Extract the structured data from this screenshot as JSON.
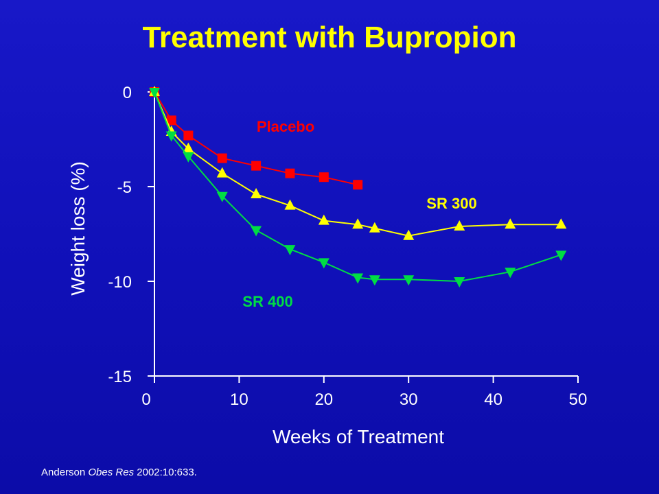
{
  "title": "Treatment with Bupropion",
  "citation": {
    "author": "Anderson ",
    "journal": "Obes Res",
    "ref": " 2002:10:633."
  },
  "chart_data": {
    "type": "line",
    "title": "Treatment with Bupropion",
    "xlabel": "Weeks of Treatment",
    "ylabel": "Weight loss (%)",
    "xlim": [
      0,
      50
    ],
    "ylim": [
      -15,
      0
    ],
    "xticks": [
      0,
      10,
      20,
      30,
      40,
      50
    ],
    "yticks": [
      0,
      -5,
      -10,
      -15
    ],
    "grid": false,
    "legend": "inline labels",
    "series": [
      {
        "name": "Placebo",
        "color": "#ff0000",
        "marker": "square",
        "x": [
          0,
          2,
          4,
          8,
          12,
          16,
          20,
          24
        ],
        "y": [
          0,
          -1.5,
          -2.3,
          -3.5,
          -3.9,
          -4.3,
          -4.5,
          -4.9
        ]
      },
      {
        "name": "SR 300",
        "color": "#ffff00",
        "marker": "triangle-up",
        "x": [
          0,
          2,
          4,
          8,
          12,
          16,
          20,
          24,
          26,
          30,
          36,
          42,
          48
        ],
        "y": [
          0,
          -2.1,
          -3.0,
          -4.3,
          -5.4,
          -6.0,
          -6.8,
          -7.0,
          -7.2,
          -7.6,
          -7.1,
          -7.0,
          -7.0
        ]
      },
      {
        "name": "SR 400",
        "color": "#00dd44",
        "marker": "triangle-down",
        "x": [
          0,
          2,
          4,
          8,
          12,
          16,
          20,
          24,
          26,
          30,
          36,
          42,
          48
        ],
        "y": [
          0,
          -2.3,
          -3.4,
          -5.5,
          -7.3,
          -8.3,
          -9.0,
          -9.8,
          -9.9,
          -9.9,
          -10.0,
          -9.5,
          -8.6
        ]
      }
    ]
  }
}
